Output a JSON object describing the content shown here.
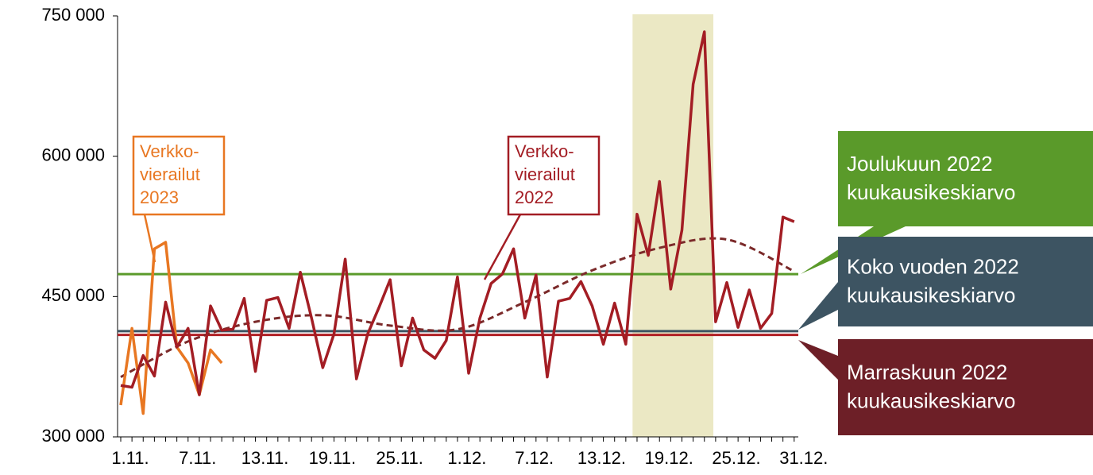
{
  "chart_data": {
    "type": "line",
    "categories": [
      "1.11.",
      null,
      null,
      null,
      null,
      null,
      "7.11.",
      null,
      null,
      null,
      null,
      null,
      "13.11.",
      null,
      null,
      null,
      null,
      null,
      "19.11.",
      null,
      null,
      null,
      null,
      null,
      "25.11.",
      null,
      null,
      null,
      null,
      null,
      "1.12.",
      null,
      null,
      null,
      null,
      null,
      "7.12.",
      null,
      null,
      null,
      null,
      null,
      "13.12.",
      null,
      null,
      null,
      null,
      null,
      "19.12.",
      null,
      null,
      null,
      null,
      null,
      "25.12.",
      null,
      null,
      null,
      null,
      null,
      "31.12."
    ],
    "series": [
      {
        "name": "Verkko-vierailut 2022",
        "label": [
          "Verkko-",
          "vierailut",
          "2022"
        ],
        "color": "#a31d24",
        "values": [
          355000,
          353000,
          387000,
          365000,
          444000,
          396000,
          416000,
          345000,
          440000,
          414000,
          415000,
          448000,
          370000,
          446000,
          449000,
          416000,
          476000,
          427000,
          374000,
          410000,
          490000,
          362000,
          410000,
          438000,
          468000,
          376000,
          427000,
          393000,
          384000,
          403000,
          471000,
          368000,
          427000,
          464000,
          474000,
          501000,
          427000,
          473000,
          364000,
          445000,
          448000,
          466000,
          440000,
          399000,
          443000,
          399000,
          538000,
          494000,
          573000,
          458000,
          521000,
          677000,
          733000,
          423000,
          465000,
          417000,
          457000,
          416000,
          432000,
          535000,
          530000
        ]
      },
      {
        "name": "Verkko-vierailut 2023",
        "label": [
          "Verkko-",
          "vierailut",
          "2023"
        ],
        "color": "#e87722",
        "values": [
          334000,
          416000,
          325000,
          501000,
          508000,
          396000,
          379000,
          345000,
          393000,
          379000,
          null,
          null,
          null,
          null,
          null,
          null,
          null,
          null,
          null,
          null,
          null,
          null,
          null,
          null,
          null,
          null,
          null,
          null,
          null,
          null,
          null,
          null,
          null,
          null,
          null,
          null,
          null,
          null,
          null,
          null,
          null,
          null,
          null,
          null,
          null,
          null,
          null,
          null,
          null,
          null,
          null,
          null,
          null,
          null,
          null,
          null,
          null,
          null,
          null,
          null,
          null
        ]
      }
    ],
    "trend": {
      "color": "#7b2a2a",
      "style": "dashed",
      "x": [
        0,
        6,
        12,
        18,
        24,
        30,
        36,
        42,
        48,
        54,
        60
      ],
      "values": [
        364000,
        402000,
        423000,
        430000,
        419000,
        415000,
        444000,
        478000,
        502000,
        511000,
        477000
      ]
    },
    "reference_lines": [
      {
        "label": [
          "Joulukuun 2022",
          "kuukausikeskiarvo"
        ],
        "value": 474000,
        "color": "#5a9a2a"
      },
      {
        "label": [
          "Koko vuoden 2022",
          "kuukausikeskiarvo"
        ],
        "value": 413000,
        "color": "#3d5462"
      },
      {
        "label": [
          "Marraskuun 2022",
          "kuukausikeskiarvo"
        ],
        "value": 409000,
        "color": "#b01f24",
        "box_color": "#6d1f27"
      }
    ],
    "highlight": {
      "from": 45.6,
      "to": 52.8,
      "color": "#ebe8c4"
    },
    "ylim": [
      300000,
      750000
    ],
    "yticks": [
      {
        "value": 300000,
        "label": "300 000"
      },
      {
        "value": 450000,
        "label": "450 000"
      },
      {
        "value": 600000,
        "label": "600 000"
      },
      {
        "value": 750000,
        "label": "750 000"
      }
    ]
  }
}
